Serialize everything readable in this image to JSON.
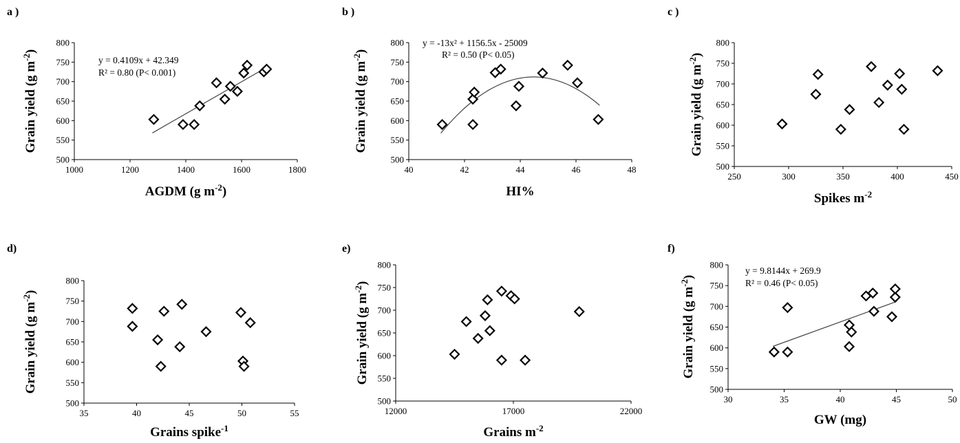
{
  "chart_data": [
    {
      "type": "scatter",
      "panel_label": "a )",
      "xlabel": "AGDM (g m",
      "xlabel_sup": "-2",
      "xlabel_tail": ")",
      "ylabel": "Grain yield  (g m",
      "ylabel_sup": "-2",
      "ylabel_tail": ")",
      "xlim": [
        1000,
        1800
      ],
      "xticks": [
        1000,
        1200,
        1400,
        1600,
        1800
      ],
      "ylim": [
        500,
        800
      ],
      "yticks": [
        500,
        550,
        600,
        650,
        700,
        750,
        800
      ],
      "points": [
        [
          1285,
          603
        ],
        [
          1390,
          590
        ],
        [
          1430,
          590
        ],
        [
          1450,
          638
        ],
        [
          1510,
          697
        ],
        [
          1540,
          655
        ],
        [
          1560,
          688
        ],
        [
          1585,
          675
        ],
        [
          1608,
          722
        ],
        [
          1620,
          742
        ],
        [
          1680,
          725
        ],
        [
          1690,
          732
        ]
      ],
      "trendline": {
        "kind": "linear",
        "coef": [
          0.4109,
          42.349
        ],
        "x_range": [
          1280,
          1695
        ]
      },
      "equation": "y = 0.4109x + 42.349",
      "r2_text": "R² = 0.80 (P< 0.001)"
    },
    {
      "type": "scatter",
      "panel_label": "b )",
      "xlabel": "HI%",
      "xlabel_sup": "",
      "xlabel_tail": "",
      "ylabel": "Grain yield  (g m",
      "ylabel_sup": "-2",
      "ylabel_tail": ")",
      "xlim": [
        40,
        48
      ],
      "xticks": [
        40,
        42,
        44,
        46,
        48
      ],
      "ylim": [
        500,
        800
      ],
      "yticks": [
        500,
        550,
        600,
        650,
        700,
        750,
        800
      ],
      "points": [
        [
          41.2,
          590
        ],
        [
          42.3,
          590
        ],
        [
          42.3,
          655
        ],
        [
          42.35,
          673
        ],
        [
          43.1,
          723
        ],
        [
          43.3,
          732
        ],
        [
          43.85,
          638
        ],
        [
          43.95,
          688
        ],
        [
          44.8,
          722
        ],
        [
          45.7,
          742
        ],
        [
          46.05,
          697
        ],
        [
          46.8,
          603
        ]
      ],
      "trendline": {
        "kind": "quadratic",
        "coef": [
          -13,
          1156.5,
          -25009
        ],
        "x_range": [
          41.15,
          46.85
        ]
      },
      "equation": "y = -13x² + 1156.5x - 25009",
      "r2_text": "R² = 0.50 (P< 0.05)"
    },
    {
      "type": "scatter",
      "panel_label": "c )",
      "xlabel": "Spikes m",
      "xlabel_sup": "-2",
      "xlabel_tail": "",
      "ylabel": "Grain yield  (g m",
      "ylabel_sup": "-2",
      "ylabel_tail": ")",
      "xlim": [
        250,
        450
      ],
      "xticks": [
        250,
        300,
        350,
        400,
        450
      ],
      "ylim": [
        500,
        800
      ],
      "yticks": [
        500,
        550,
        600,
        650,
        700,
        750,
        800
      ],
      "points": [
        [
          294,
          603
        ],
        [
          325,
          675
        ],
        [
          327,
          723
        ],
        [
          348,
          590
        ],
        [
          356,
          638
        ],
        [
          376,
          742
        ],
        [
          383,
          655
        ],
        [
          391,
          697
        ],
        [
          402,
          725
        ],
        [
          404,
          687
        ],
        [
          406,
          590
        ],
        [
          437,
          732
        ]
      ],
      "trendline": null,
      "equation": "",
      "r2_text": ""
    },
    {
      "type": "scatter",
      "panel_label": "d)",
      "xlabel": "Grains spike",
      "xlabel_sup": "-1",
      "xlabel_tail": "",
      "ylabel": "Grain yield  (g m",
      "ylabel_sup": "-2",
      "ylabel_tail": ")",
      "xlim": [
        35,
        55
      ],
      "xticks": [
        35,
        40,
        45,
        50,
        55
      ],
      "ylim": [
        500,
        800
      ],
      "yticks": [
        500,
        550,
        600,
        650,
        700,
        750,
        800
      ],
      "points": [
        [
          39.6,
          732
        ],
        [
          39.6,
          688
        ],
        [
          42.0,
          655
        ],
        [
          42.3,
          590
        ],
        [
          42.6,
          725
        ],
        [
          44.1,
          638
        ],
        [
          44.3,
          742
        ],
        [
          46.6,
          675
        ],
        [
          49.9,
          722
        ],
        [
          50.1,
          603
        ],
        [
          50.2,
          590
        ],
        [
          50.8,
          697
        ]
      ],
      "trendline": null,
      "equation": "",
      "r2_text": ""
    },
    {
      "type": "scatter",
      "panel_label": "e)",
      "xlabel": "Grains m",
      "xlabel_sup": "-2",
      "xlabel_tail": "",
      "ylabel": "Grain yield  (g m",
      "ylabel_sup": "-2",
      "ylabel_tail": ")",
      "xlim": [
        12000,
        22000
      ],
      "xticks": [
        12000,
        17000,
        22000
      ],
      "ylim": [
        500,
        800
      ],
      "yticks": [
        500,
        550,
        600,
        650,
        700,
        750,
        800
      ],
      "points": [
        [
          14500,
          603
        ],
        [
          15000,
          675
        ],
        [
          15500,
          638
        ],
        [
          15800,
          688
        ],
        [
          15900,
          723
        ],
        [
          16000,
          655
        ],
        [
          16500,
          590
        ],
        [
          16500,
          742
        ],
        [
          16900,
          732
        ],
        [
          17050,
          725
        ],
        [
          17500,
          590
        ],
        [
          19800,
          697
        ]
      ],
      "trendline": null,
      "equation": "",
      "r2_text": ""
    },
    {
      "type": "scatter",
      "panel_label": "f)",
      "xlabel": "GW (mg)",
      "xlabel_sup": "",
      "xlabel_tail": "",
      "ylabel": "Grain yield  (g m",
      "ylabel_sup": "-2",
      "ylabel_tail": ")",
      "xlim": [
        30,
        50
      ],
      "xticks": [
        30,
        35,
        40,
        45,
        50
      ],
      "ylim": [
        500,
        800
      ],
      "yticks": [
        500,
        550,
        600,
        650,
        700,
        750,
        800
      ],
      "points": [
        [
          34.1,
          590
        ],
        [
          35.3,
          590
        ],
        [
          35.3,
          697
        ],
        [
          40.8,
          655
        ],
        [
          40.8,
          603
        ],
        [
          41.0,
          638
        ],
        [
          42.3,
          725
        ],
        [
          42.9,
          732
        ],
        [
          43.0,
          688
        ],
        [
          44.6,
          675
        ],
        [
          44.9,
          722
        ],
        [
          44.9,
          742
        ]
      ],
      "trendline": {
        "kind": "linear",
        "coef": [
          9.8144,
          269.9
        ],
        "x_range": [
          34.0,
          45.0
        ]
      },
      "equation": "y = 9.8144x + 269.9",
      "r2_text": "R² = 0.46 (P< 0.05)"
    }
  ]
}
